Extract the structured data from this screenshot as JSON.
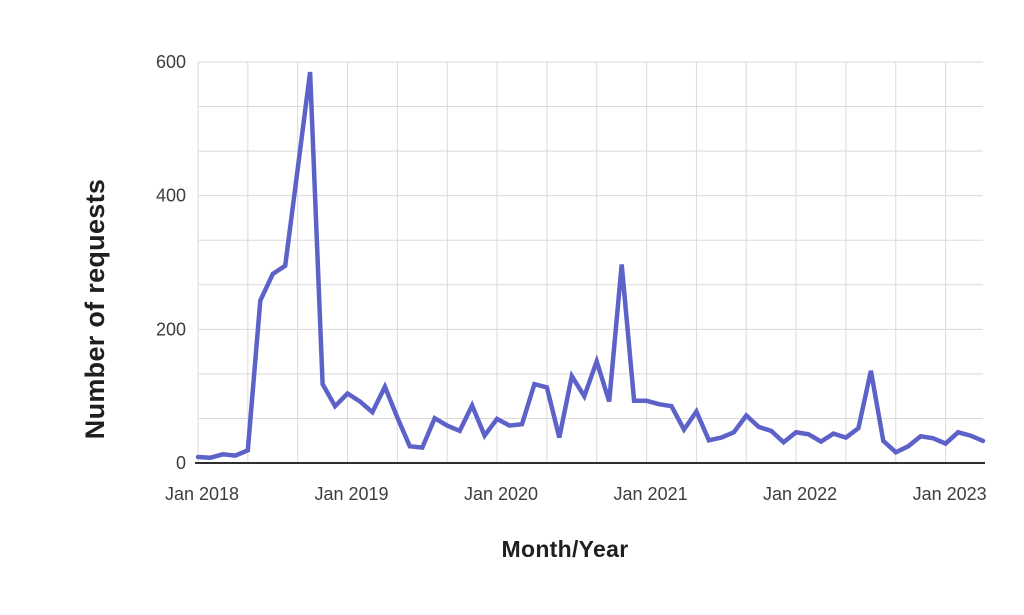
{
  "page": {
    "background": "#ffffff"
  },
  "chart_data": {
    "type": "line",
    "title": "",
    "xlabel": "Month/Year",
    "ylabel": "Number of requests",
    "legend": "none",
    "grid": "major + minor gridlines, light gray, both axes",
    "ylim": [
      0,
      600
    ],
    "y_ticks": [
      0,
      200,
      400,
      600
    ],
    "y_minor_step": 66.667,
    "x_tick_labels": [
      "Jan 2018",
      "Jan 2019",
      "Jan 2020",
      "Jan 2021",
      "Jan 2022",
      "Jan 2023"
    ],
    "x_tick_month_indices": [
      0,
      12,
      24,
      36,
      48,
      60
    ],
    "x_minor_step_months": 4,
    "x": [
      "Jan 2018",
      "Feb 2018",
      "Mar 2018",
      "Apr 2018",
      "May 2018",
      "Jun 2018",
      "Jul 2018",
      "Aug 2018",
      "Sep 2018",
      "Oct 2018",
      "Nov 2018",
      "Dec 2018",
      "Jan 2019",
      "Feb 2019",
      "Mar 2019",
      "Apr 2019",
      "May 2019",
      "Jun 2019",
      "Jul 2019",
      "Aug 2019",
      "Sep 2019",
      "Oct 2019",
      "Nov 2019",
      "Dec 2019",
      "Jan 2020",
      "Feb 2020",
      "Mar 2020",
      "Apr 2020",
      "May 2020",
      "Jun 2020",
      "Jul 2020",
      "Aug 2020",
      "Sep 2020",
      "Oct 2020",
      "Nov 2020",
      "Dec 2020",
      "Jan 2021",
      "Feb 2021",
      "Mar 2021",
      "Apr 2021",
      "May 2021",
      "Jun 2021",
      "Jul 2021",
      "Aug 2021",
      "Sep 2021",
      "Oct 2021",
      "Nov 2021",
      "Dec 2021",
      "Jan 2022",
      "Feb 2022",
      "Mar 2022",
      "Apr 2022",
      "May 2022",
      "Jun 2022",
      "Jul 2022",
      "Aug 2022",
      "Sep 2022",
      "Oct 2022",
      "Nov 2022",
      "Dec 2022",
      "Jan 2023",
      "Feb 2023",
      "Mar 2023",
      "Apr 2023"
    ],
    "values": [
      9,
      8,
      13,
      11,
      19,
      243,
      283,
      295,
      440,
      585,
      118,
      85,
      104,
      92,
      76,
      114,
      68,
      25,
      23,
      67,
      56,
      48,
      86,
      41,
      66,
      56,
      58,
      118,
      113,
      38,
      130,
      100,
      152,
      92,
      297,
      93,
      93,
      88,
      85,
      50,
      77,
      34,
      38,
      46,
      71,
      54,
      48,
      31,
      46,
      43,
      32,
      44,
      38,
      52,
      138,
      33,
      16,
      25,
      40,
      37,
      29,
      46,
      41,
      33
    ],
    "colors": {
      "line": "#5d62c8",
      "grid": "#dadada",
      "axis": "#2e2e2e",
      "tick_label": "#3d3d3d",
      "title_text": "#1f1f1f",
      "background": "#ffffff"
    }
  }
}
